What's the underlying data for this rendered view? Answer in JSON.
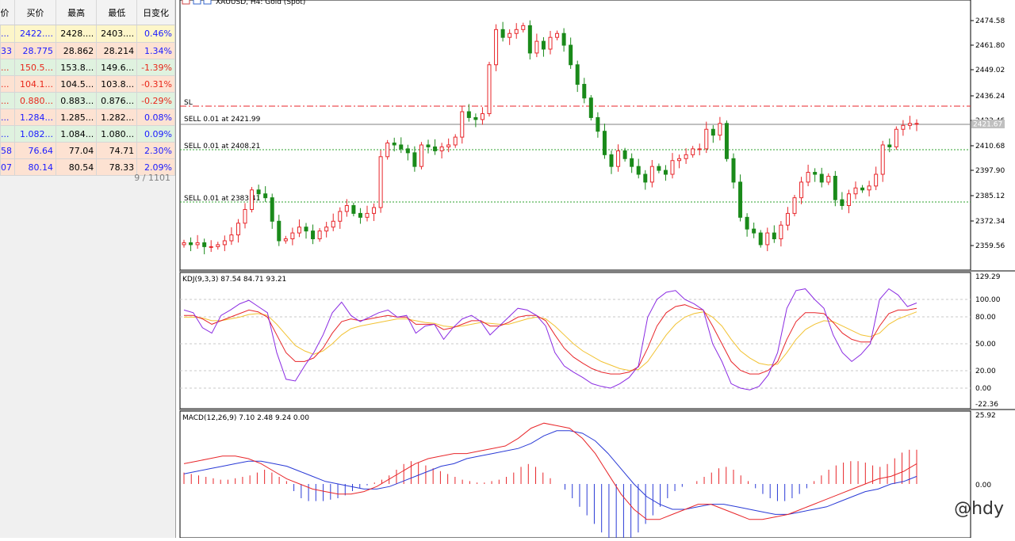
{
  "market_watch": {
    "headers": [
      "价",
      "买价",
      "最高",
      "最低",
      "日变化"
    ],
    "rows": [
      {
        "c0": "...",
        "bid": "2422....",
        "high": "2428....",
        "low": "2403....",
        "change": "0.46%",
        "dir": "up",
        "row": "sel"
      },
      {
        "c0": "33",
        "bid": "28.775",
        "high": "28.862",
        "low": "28.214",
        "change": "1.34%",
        "dir": "up",
        "row": "dn"
      },
      {
        "c0": "...",
        "bid": "150.5...",
        "high": "153.8...",
        "low": "149.6...",
        "change": "-1.39%",
        "dir": "dn",
        "row": "up"
      },
      {
        "c0": "...",
        "bid": "104.1...",
        "high": "104.5...",
        "low": "103.8...",
        "change": "-0.31%",
        "dir": "dn",
        "row": "dn"
      },
      {
        "c0": "...",
        "bid": "0.880...",
        "high": "0.883...",
        "low": "0.876...",
        "change": "-0.29%",
        "dir": "dn",
        "row": "up"
      },
      {
        "c0": "...",
        "bid": "1.284...",
        "high": "1.285...",
        "low": "1.282...",
        "change": "0.08%",
        "dir": "up",
        "row": "dn"
      },
      {
        "c0": "...",
        "bid": "1.082...",
        "high": "1.084...",
        "low": "1.080...",
        "change": "0.09%",
        "dir": "up",
        "row": "up"
      },
      {
        "c0": "58",
        "bid": "76.64",
        "high": "77.04",
        "low": "74.71",
        "change": "2.30%",
        "dir": "up",
        "row": "dn"
      },
      {
        "c0": "07",
        "bid": "80.14",
        "high": "80.54",
        "low": "78.33",
        "change": "2.09%",
        "dir": "up",
        "row": "dn"
      }
    ],
    "count": "9 / 1101"
  },
  "chart": {
    "title": "XAUUSD, H4:  Gold (Spot)",
    "price_axis": [
      "2474.58",
      "2461.80",
      "2449.02",
      "2436.24",
      "2423.46",
      "2410.68",
      "2397.90",
      "2385.12",
      "2372.34",
      "2359.56"
    ],
    "current_price": "2421.67",
    "lines": {
      "sl": "SL",
      "sell1": "SELL 0.01 at 2421.99",
      "sell2": "SELL 0.01 at 2408.21",
      "sell3": "SELL 0.01 at 2383.41"
    },
    "kdj_label": "KDJ(9,3,3) 87.54 84.71 93.21",
    "kdj_axis": [
      "129.29",
      "100.00",
      "80.00",
      "50.00",
      "20.00",
      "0.00",
      "-22.36"
    ],
    "macd_label": "MACD(12,26,9) 7.10 2.48 9.24 0.00",
    "macd_axis": [
      "25.92",
      "0.00"
    ],
    "colors": {
      "bull": "#e8262a",
      "bear": "#1a8a1a",
      "k": "#e8262a",
      "d": "#f2c232",
      "j": "#8a2be2",
      "macd": "#e8262a",
      "signal": "#2a3ad6",
      "sl_line": "#e8262a",
      "sell_line": "#2ca02c"
    }
  },
  "watermark": "@hdy"
}
